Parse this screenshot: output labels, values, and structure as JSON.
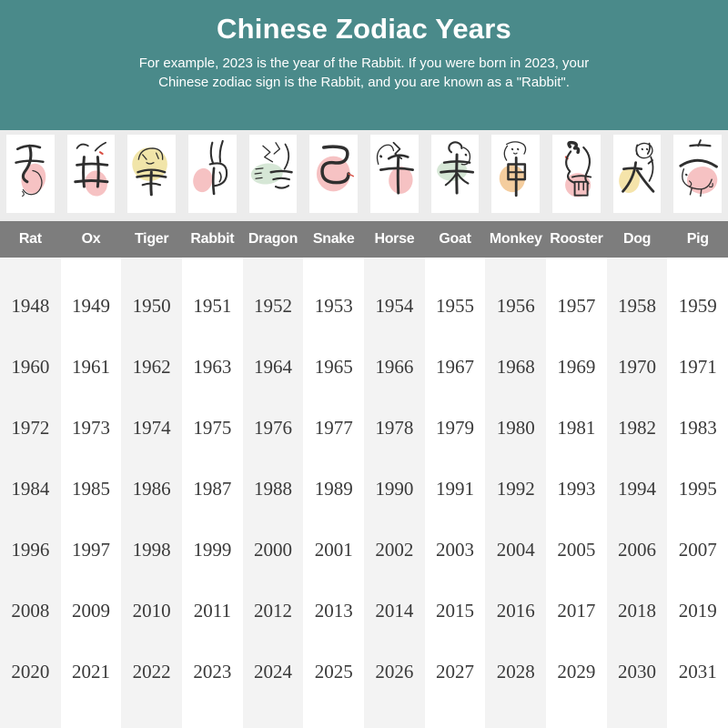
{
  "header": {
    "title": "Chinese Zodiac Years",
    "subtitle_line1": "For example, 2023 is the year of the Rabbit. If you were born in 2023, your",
    "subtitle_line2": "Chinese zodiac sign is the Rabbit, and you are known as a \"Rabbit\"."
  },
  "colors": {
    "header_bg": "#4a8a8a",
    "name_bar_bg": "#7d7d7d",
    "column_stripe": "#f3f3f3",
    "animal_strip_bg": "#ececec",
    "year_text": "#3a3a3a",
    "ink": "#2f2f2f",
    "accent_red": "#d94f43",
    "blob_pink": "#f5b7b9",
    "blob_yellow": "#efe09a",
    "blob_green": "#cfe3cf",
    "blob_orange": "#f2c48d"
  },
  "animals": [
    {
      "name": "Rat",
      "char": "子",
      "icon": "rat-calligraphy-icon",
      "blob": "#f5b7b9"
    },
    {
      "name": "Ox",
      "char": "丑",
      "icon": "ox-calligraphy-icon",
      "blob": "#f5b7b9"
    },
    {
      "name": "Tiger",
      "char": "寅",
      "icon": "tiger-calligraphy-icon",
      "blob": "#efe09a"
    },
    {
      "name": "Rabbit",
      "char": "卯",
      "icon": "rabbit-calligraphy-icon",
      "blob": "#f5b7b9"
    },
    {
      "name": "Dragon",
      "char": "辰",
      "icon": "dragon-calligraphy-icon",
      "blob": "#cfe3cf"
    },
    {
      "name": "Snake",
      "char": "巳",
      "icon": "snake-calligraphy-icon",
      "blob": "#f5b7b9"
    },
    {
      "name": "Horse",
      "char": "午",
      "icon": "horse-calligraphy-icon",
      "blob": "#f5b7b9"
    },
    {
      "name": "Goat",
      "char": "未",
      "icon": "goat-calligraphy-icon",
      "blob": "#cfe3cf"
    },
    {
      "name": "Monkey",
      "char": "申",
      "icon": "monkey-calligraphy-icon",
      "blob": "#f2c48d"
    },
    {
      "name": "Rooster",
      "char": "酉",
      "icon": "rooster-calligraphy-icon",
      "blob": "#f5b7b9"
    },
    {
      "name": "Dog",
      "char": "戌",
      "icon": "dog-calligraphy-icon",
      "blob": "#f3df9b"
    },
    {
      "name": "Pig",
      "char": "亥",
      "icon": "pig-calligraphy-icon",
      "blob": "#f5b7b9"
    }
  ],
  "chart_data": {
    "type": "table",
    "title": "Chinese Zodiac Years",
    "columns": [
      "Rat",
      "Ox",
      "Tiger",
      "Rabbit",
      "Dragon",
      "Snake",
      "Horse",
      "Goat",
      "Monkey",
      "Rooster",
      "Dog",
      "Pig"
    ],
    "rows": [
      [
        1948,
        1949,
        1950,
        1951,
        1952,
        1953,
        1954,
        1955,
        1956,
        1957,
        1958,
        1959
      ],
      [
        1960,
        1961,
        1962,
        1963,
        1964,
        1965,
        1966,
        1967,
        1968,
        1969,
        1970,
        1971
      ],
      [
        1972,
        1973,
        1974,
        1975,
        1976,
        1977,
        1978,
        1979,
        1980,
        1981,
        1982,
        1983
      ],
      [
        1984,
        1985,
        1986,
        1987,
        1988,
        1989,
        1990,
        1991,
        1992,
        1993,
        1994,
        1995
      ],
      [
        1996,
        1997,
        1998,
        1999,
        2000,
        2001,
        2002,
        2003,
        2004,
        2005,
        2006,
        2007
      ],
      [
        2008,
        2009,
        2010,
        2011,
        2012,
        2013,
        2014,
        2015,
        2016,
        2017,
        2018,
        2019
      ],
      [
        2020,
        2021,
        2022,
        2023,
        2024,
        2025,
        2026,
        2027,
        2028,
        2029,
        2030,
        2031
      ]
    ]
  }
}
